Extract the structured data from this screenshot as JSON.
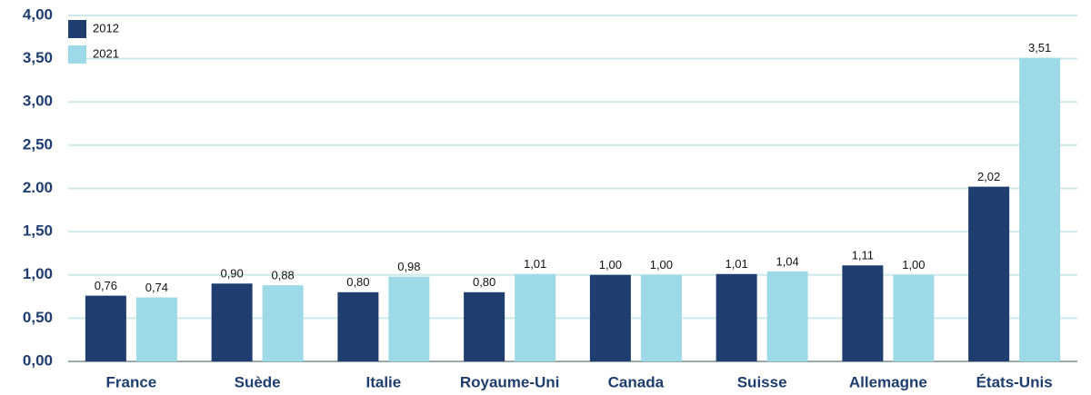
{
  "chart_data": {
    "type": "bar",
    "categories": [
      "France",
      "Suède",
      "Italie",
      "Royaume-Uni",
      "Canada",
      "Suisse",
      "Allemagne",
      "États-Unis"
    ],
    "series": [
      {
        "name": "2012",
        "color": "#1f3d6e",
        "values": [
          0.76,
          0.9,
          0.8,
          0.8,
          1.0,
          1.01,
          1.11,
          2.02
        ],
        "value_labels": [
          "0,76",
          "0,90",
          "0,80",
          "0,80",
          "1,00",
          "1,01",
          "1,11",
          "2,02"
        ]
      },
      {
        "name": "2021",
        "color": "#9dd9e6",
        "values": [
          0.74,
          0.88,
          0.98,
          1.01,
          1.0,
          1.04,
          1.0,
          3.51
        ],
        "value_labels": [
          "0,74",
          "0,88",
          "0,98",
          "1,01",
          "1,00",
          "1,04",
          "1,00",
          "3,51"
        ]
      }
    ],
    "ylim": [
      0,
      4
    ],
    "yticks": [
      {
        "value": 0,
        "label": "0,00"
      },
      {
        "value": 0.5,
        "label": "0,50"
      },
      {
        "value": 1,
        "label": "1,00"
      },
      {
        "value": 1.5,
        "label": "1,50"
      },
      {
        "value": 2,
        "label": "2.00"
      },
      {
        "value": 2.5,
        "label": "2,50"
      },
      {
        "value": 3,
        "label": "3,00"
      },
      {
        "value": 3.5,
        "label": "3,50"
      },
      {
        "value": 4,
        "label": "4,00"
      }
    ],
    "grid": true,
    "legend": "top-left"
  }
}
